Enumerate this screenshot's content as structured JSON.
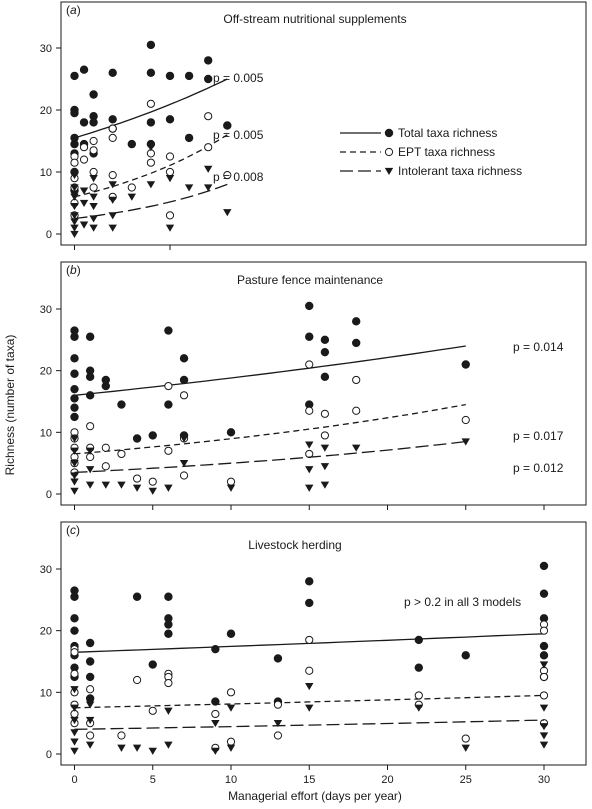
{
  "figure": {
    "ylabel": "Richness (number of taxa)",
    "xlabel": "Managerial effort (days per year)",
    "legend": [
      {
        "name": "Total taxa richness",
        "marker": "filled-circle",
        "line": "solid"
      },
      {
        "name": "EPT taxa richness",
        "marker": "open-circle",
        "line": "short-dash"
      },
      {
        "name": "Intolerant taxa richness",
        "marker": "filled-triangle-down",
        "line": "long-dash"
      }
    ],
    "colors": {
      "ink": "#1a1a1a",
      "background": "#ffffff"
    }
  },
  "chart_data": [
    {
      "type": "scatter",
      "panel_label": "(a)",
      "title": "Off-stream nutritional supplements",
      "xlim": [
        -0.4,
        9.2
      ],
      "ylim": [
        -1,
        35
      ],
      "xticks": [
        0,
        5
      ],
      "yticks": [
        0,
        10,
        20,
        30
      ],
      "show_xtick_labels": false,
      "series": [
        {
          "name": "Total taxa richness",
          "marker": "filled-circle",
          "x": [
            0,
            0,
            0,
            0,
            0,
            0,
            0,
            0,
            0.5,
            0.5,
            0.5,
            1,
            1,
            1,
            1,
            2,
            2,
            2,
            3,
            4,
            4,
            4,
            4,
            5,
            5,
            6,
            6,
            7,
            7,
            8
          ],
          "y": [
            25.5,
            20,
            19.5,
            15.5,
            14.5,
            13,
            10,
            7,
            26.5,
            18,
            14.5,
            22.5,
            19,
            18,
            13,
            26,
            18.5,
            17,
            14.5,
            30.5,
            26,
            18,
            14.5,
            25.5,
            18.5,
            25.5,
            15.5,
            28,
            25,
            17.5
          ],
          "fit": [
            [
              0,
              15.5
            ],
            [
              8,
              25
            ]
          ],
          "p": "p = 0.005"
        },
        {
          "name": "EPT taxa richness",
          "marker": "open-circle",
          "x": [
            0,
            0,
            0,
            0,
            0,
            0,
            0.5,
            0.5,
            1,
            1,
            1,
            1,
            2,
            2,
            2,
            2,
            3,
            4,
            4,
            4,
            5,
            5,
            5,
            7,
            7,
            8
          ],
          "y": [
            12.5,
            11.5,
            9,
            7.5,
            5,
            3,
            14,
            12,
            15,
            13.5,
            10,
            7.5,
            17,
            15.5,
            9.5,
            6,
            7.5,
            21,
            13,
            11.5,
            12.5,
            10,
            3,
            19,
            14,
            9.5
          ],
          "fit": [
            [
              0,
              6
            ],
            [
              8,
              16
            ]
          ],
          "p": "p = 0.005"
        },
        {
          "name": "Intolerant taxa richness",
          "marker": "filled-triangle-down",
          "x": [
            0,
            0,
            0,
            0,
            0,
            0,
            0,
            0,
            0.5,
            0.5,
            0.5,
            1,
            1,
            1,
            1,
            1,
            2,
            2,
            2,
            2,
            3,
            4,
            4,
            5,
            5,
            6,
            7,
            7,
            8
          ],
          "y": [
            9.5,
            7.5,
            6,
            4.5,
            3,
            2,
            1,
            0,
            7,
            5,
            1.5,
            9,
            6,
            4.5,
            2.5,
            1,
            8,
            5.5,
            3,
            1,
            6,
            14,
            8,
            9,
            1,
            7.5,
            10.5,
            7.5,
            3.5
          ],
          "fit": [
            [
              0,
              2.5
            ],
            [
              8,
              8
            ]
          ],
          "p": "p = 0.008"
        }
      ]
    },
    {
      "type": "scatter",
      "panel_label": "(b)",
      "title": "Pasture fence maintenance",
      "xlim": [
        -0.6,
        30.5
      ],
      "ylim": [
        -1,
        35
      ],
      "xticks": [
        0,
        5,
        10,
        15,
        20,
        25,
        30
      ],
      "yticks": [
        0,
        10,
        20,
        30
      ],
      "show_xtick_labels": false,
      "series": [
        {
          "name": "Total taxa richness",
          "marker": "filled-circle",
          "x": [
            0,
            0,
            0,
            0,
            0,
            0,
            0,
            0,
            1,
            1,
            1,
            1,
            2,
            2,
            3,
            4,
            5,
            6,
            6,
            7,
            7,
            7,
            10,
            15,
            15,
            15,
            16,
            16,
            16,
            18,
            18,
            25
          ],
          "y": [
            26.5,
            25.5,
            22,
            19.5,
            17,
            15.5,
            14,
            12.5,
            25.5,
            20,
            19,
            16,
            18.5,
            17.5,
            14.5,
            9,
            9.5,
            26.5,
            14.5,
            22,
            18.5,
            9.5,
            10,
            30.5,
            25.5,
            14.5,
            25,
            23,
            19,
            28,
            24.5,
            21
          ],
          "fit": [
            [
              0,
              16
            ],
            [
              25,
              24
            ]
          ],
          "p": "p = 0.014"
        },
        {
          "name": "EPT taxa richness",
          "marker": "open-circle",
          "x": [
            0,
            0,
            0,
            0,
            0,
            0,
            1,
            1,
            1,
            2,
            2,
            3,
            4,
            5,
            6,
            6,
            7,
            7,
            7,
            10,
            15,
            15,
            15,
            16,
            16,
            18,
            18,
            25
          ],
          "y": [
            10,
            9,
            7.5,
            6,
            5,
            3.5,
            11,
            7.5,
            6,
            7.5,
            4.5,
            6.5,
            2.5,
            2,
            17.5,
            7,
            16,
            9,
            3,
            2,
            21,
            13.5,
            6.5,
            13,
            9.5,
            18.5,
            13.5,
            12
          ],
          "fit": [
            [
              0,
              6.5
            ],
            [
              25,
              14.5
            ]
          ],
          "p": "p = 0.017"
        },
        {
          "name": "Intolerant taxa richness",
          "marker": "filled-triangle-down",
          "x": [
            0,
            0,
            0,
            0,
            0,
            0,
            1,
            1,
            1,
            2,
            3,
            4,
            5,
            6,
            7,
            7,
            10,
            15,
            15,
            15,
            16,
            16,
            16,
            18,
            25
          ],
          "y": [
            9,
            7,
            5,
            3,
            2,
            0.5,
            7,
            4,
            1.5,
            1.5,
            1.5,
            1,
            0.5,
            1,
            9,
            5,
            1,
            8,
            4,
            1,
            7.5,
            4.5,
            1.5,
            7.5,
            8.5
          ],
          "fit": [
            [
              0,
              3.5
            ],
            [
              25,
              8.5
            ]
          ],
          "p": "p = 0.012"
        }
      ]
    },
    {
      "type": "scatter",
      "panel_label": "(c)",
      "title": "Livestock herding",
      "xlim": [
        -0.6,
        30.5
      ],
      "ylim": [
        -1,
        35
      ],
      "xticks": [
        0,
        5,
        10,
        15,
        20,
        25,
        30
      ],
      "yticks": [
        0,
        10,
        20,
        30
      ],
      "show_xtick_labels": true,
      "annotation": "p > 0.2 in all 3 models",
      "series": [
        {
          "name": "Total taxa richness",
          "marker": "filled-circle",
          "x": [
            0,
            0,
            0,
            0,
            0,
            0,
            0,
            0,
            1,
            1,
            1,
            1,
            4,
            5,
            6,
            6,
            6,
            6,
            9,
            9,
            10,
            13,
            13,
            15,
            15,
            22,
            22,
            25,
            30,
            30,
            30,
            30,
            30,
            30
          ],
          "y": [
            26.5,
            25.5,
            22,
            20,
            17.5,
            16,
            14,
            12.5,
            18,
            15,
            12.5,
            9,
            25.5,
            14.5,
            25.5,
            22,
            21,
            19.5,
            17,
            8.5,
            19.5,
            15.5,
            8.5,
            28,
            24.5,
            18.5,
            14,
            16,
            30.5,
            26,
            22,
            17.5,
            16,
            12.5
          ],
          "fit": [
            [
              0,
              16.5
            ],
            [
              30,
              19.5
            ]
          ]
        },
        {
          "name": "EPT taxa richness",
          "marker": "open-circle",
          "x": [
            0,
            0,
            0,
            0,
            0,
            0,
            0,
            1,
            1,
            1,
            3,
            4,
            5,
            6,
            6,
            6,
            9,
            9,
            10,
            10,
            13,
            13,
            15,
            15,
            22,
            22,
            25,
            30,
            30,
            30,
            30,
            30,
            30
          ],
          "y": [
            17,
            16.5,
            13,
            10,
            8,
            6.5,
            5,
            10.5,
            5,
            3,
            3,
            12,
            7,
            13,
            12.5,
            11.5,
            6.5,
            1,
            10,
            2,
            8,
            3,
            18.5,
            13.5,
            9.5,
            8,
            2.5,
            21,
            20,
            13.5,
            12.5,
            9.5,
            5
          ],
          "fit": [
            [
              0,
              7.5
            ],
            [
              30,
              9.5
            ]
          ]
        },
        {
          "name": "Intolerant taxa richness",
          "marker": "filled-triangle-down",
          "x": [
            0,
            0,
            0,
            0,
            0,
            0,
            1,
            1,
            1,
            3,
            4,
            5,
            6,
            6,
            9,
            9,
            10,
            10,
            13,
            15,
            15,
            22,
            25,
            30,
            30,
            30,
            30,
            30
          ],
          "y": [
            10.5,
            7.5,
            5.5,
            3.5,
            2,
            0.5,
            8,
            5.5,
            1.5,
            1,
            1,
            0.5,
            7,
            1.5,
            5,
            0.5,
            7.5,
            1,
            5,
            11,
            7.5,
            7.5,
            1,
            14.5,
            7.5,
            4.5,
            3,
            1.5
          ],
          "fit": [
            [
              0,
              4
            ],
            [
              30,
              5.5
            ]
          ]
        }
      ]
    }
  ]
}
